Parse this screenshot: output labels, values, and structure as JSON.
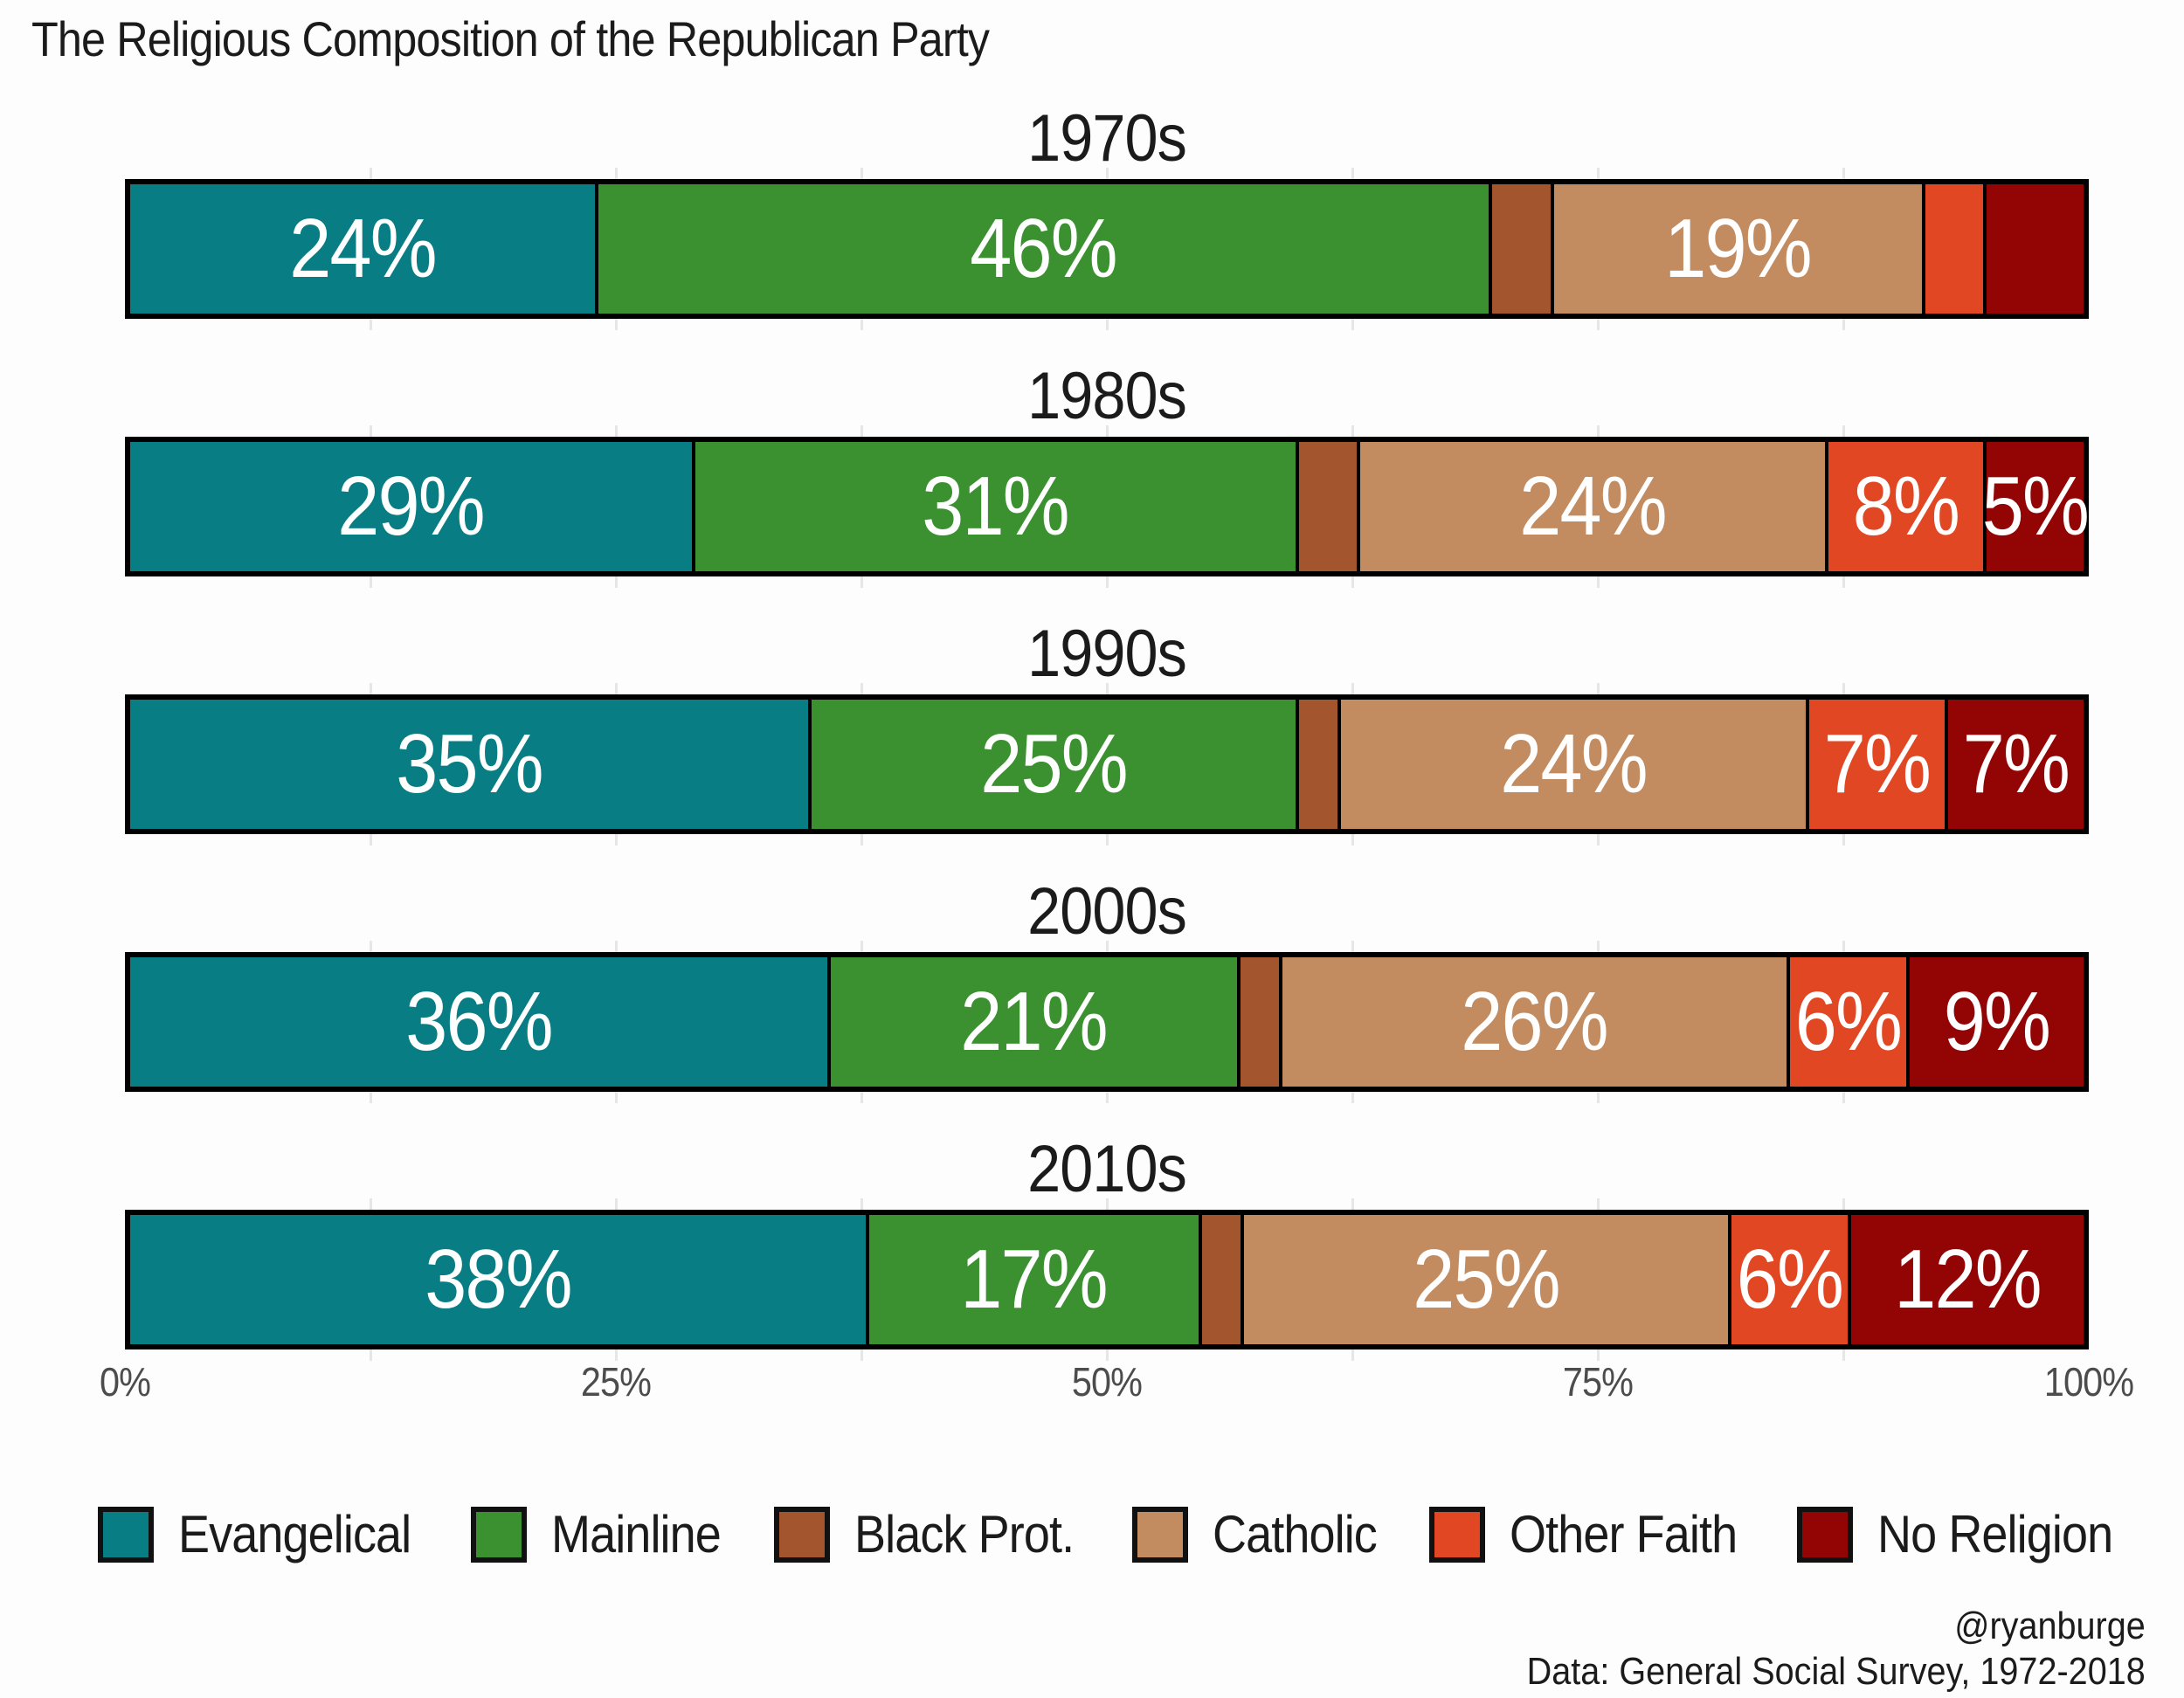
{
  "chart_data": {
    "type": "bar",
    "variant": "horizontal-stacked-100pct",
    "title": "The Religious Composition of the Republican Party",
    "series_names": [
      "Evangelical",
      "Mainline",
      "Black Prot.",
      "Catholic",
      "Other Faith",
      "No Religion"
    ],
    "colors": [
      "#087E84",
      "#3B9130",
      "#A3552E",
      "#C28B60",
      "#E04722",
      "#930505"
    ],
    "groups": [
      {
        "decade": "1970s",
        "values": [
          24,
          46,
          3,
          19,
          3,
          5
        ],
        "labels": [
          "24%",
          "46%",
          "",
          "19%",
          "",
          ""
        ]
      },
      {
        "decade": "1980s",
        "values": [
          29,
          31,
          3,
          24,
          8,
          5
        ],
        "labels": [
          "29%",
          "31%",
          "",
          "24%",
          "8%",
          "5%"
        ]
      },
      {
        "decade": "1990s",
        "values": [
          35,
          25,
          2,
          24,
          7,
          7
        ],
        "labels": [
          "35%",
          "25%",
          "",
          "24%",
          "7%",
          "7%"
        ]
      },
      {
        "decade": "2000s",
        "values": [
          36,
          21,
          2,
          26,
          6,
          9
        ],
        "labels": [
          "36%",
          "21%",
          "",
          "26%",
          "6%",
          "9%"
        ]
      },
      {
        "decade": "2010s",
        "values": [
          38,
          17,
          2,
          25,
          6,
          12
        ],
        "labels": [
          "38%",
          "17%",
          "",
          "25%",
          "6%",
          "12%"
        ]
      }
    ],
    "x_axis": {
      "range": [
        0,
        100
      ],
      "tick_positions": [
        0,
        25,
        50,
        75,
        100
      ],
      "tick_labels": [
        "0%",
        "25%",
        "50%",
        "75%",
        "100%"
      ],
      "gridline_positions": [
        12.5,
        25,
        37.5,
        50,
        62.5,
        75,
        87.5
      ]
    },
    "legend": [
      {
        "label": "Evangelical",
        "color": "#087E84"
      },
      {
        "label": "Mainline",
        "color": "#3B9130"
      },
      {
        "label": "Black Prot.",
        "color": "#A3552E"
      },
      {
        "label": "Catholic",
        "color": "#C28B60"
      },
      {
        "label": "Other Faith",
        "color": "#E04722"
      },
      {
        "label": "No Religion",
        "color": "#930505"
      }
    ],
    "credit_line1": "@ryanburge",
    "credit_line2": "Data: General Social Survey, 1972-2018",
    "text_color": "#1b1b1b",
    "axis_text_color": "#4c4c4c",
    "gridline_color": "#e6e6e6",
    "bar_border_color": "#000000",
    "value_label_color": "#ffffff"
  }
}
